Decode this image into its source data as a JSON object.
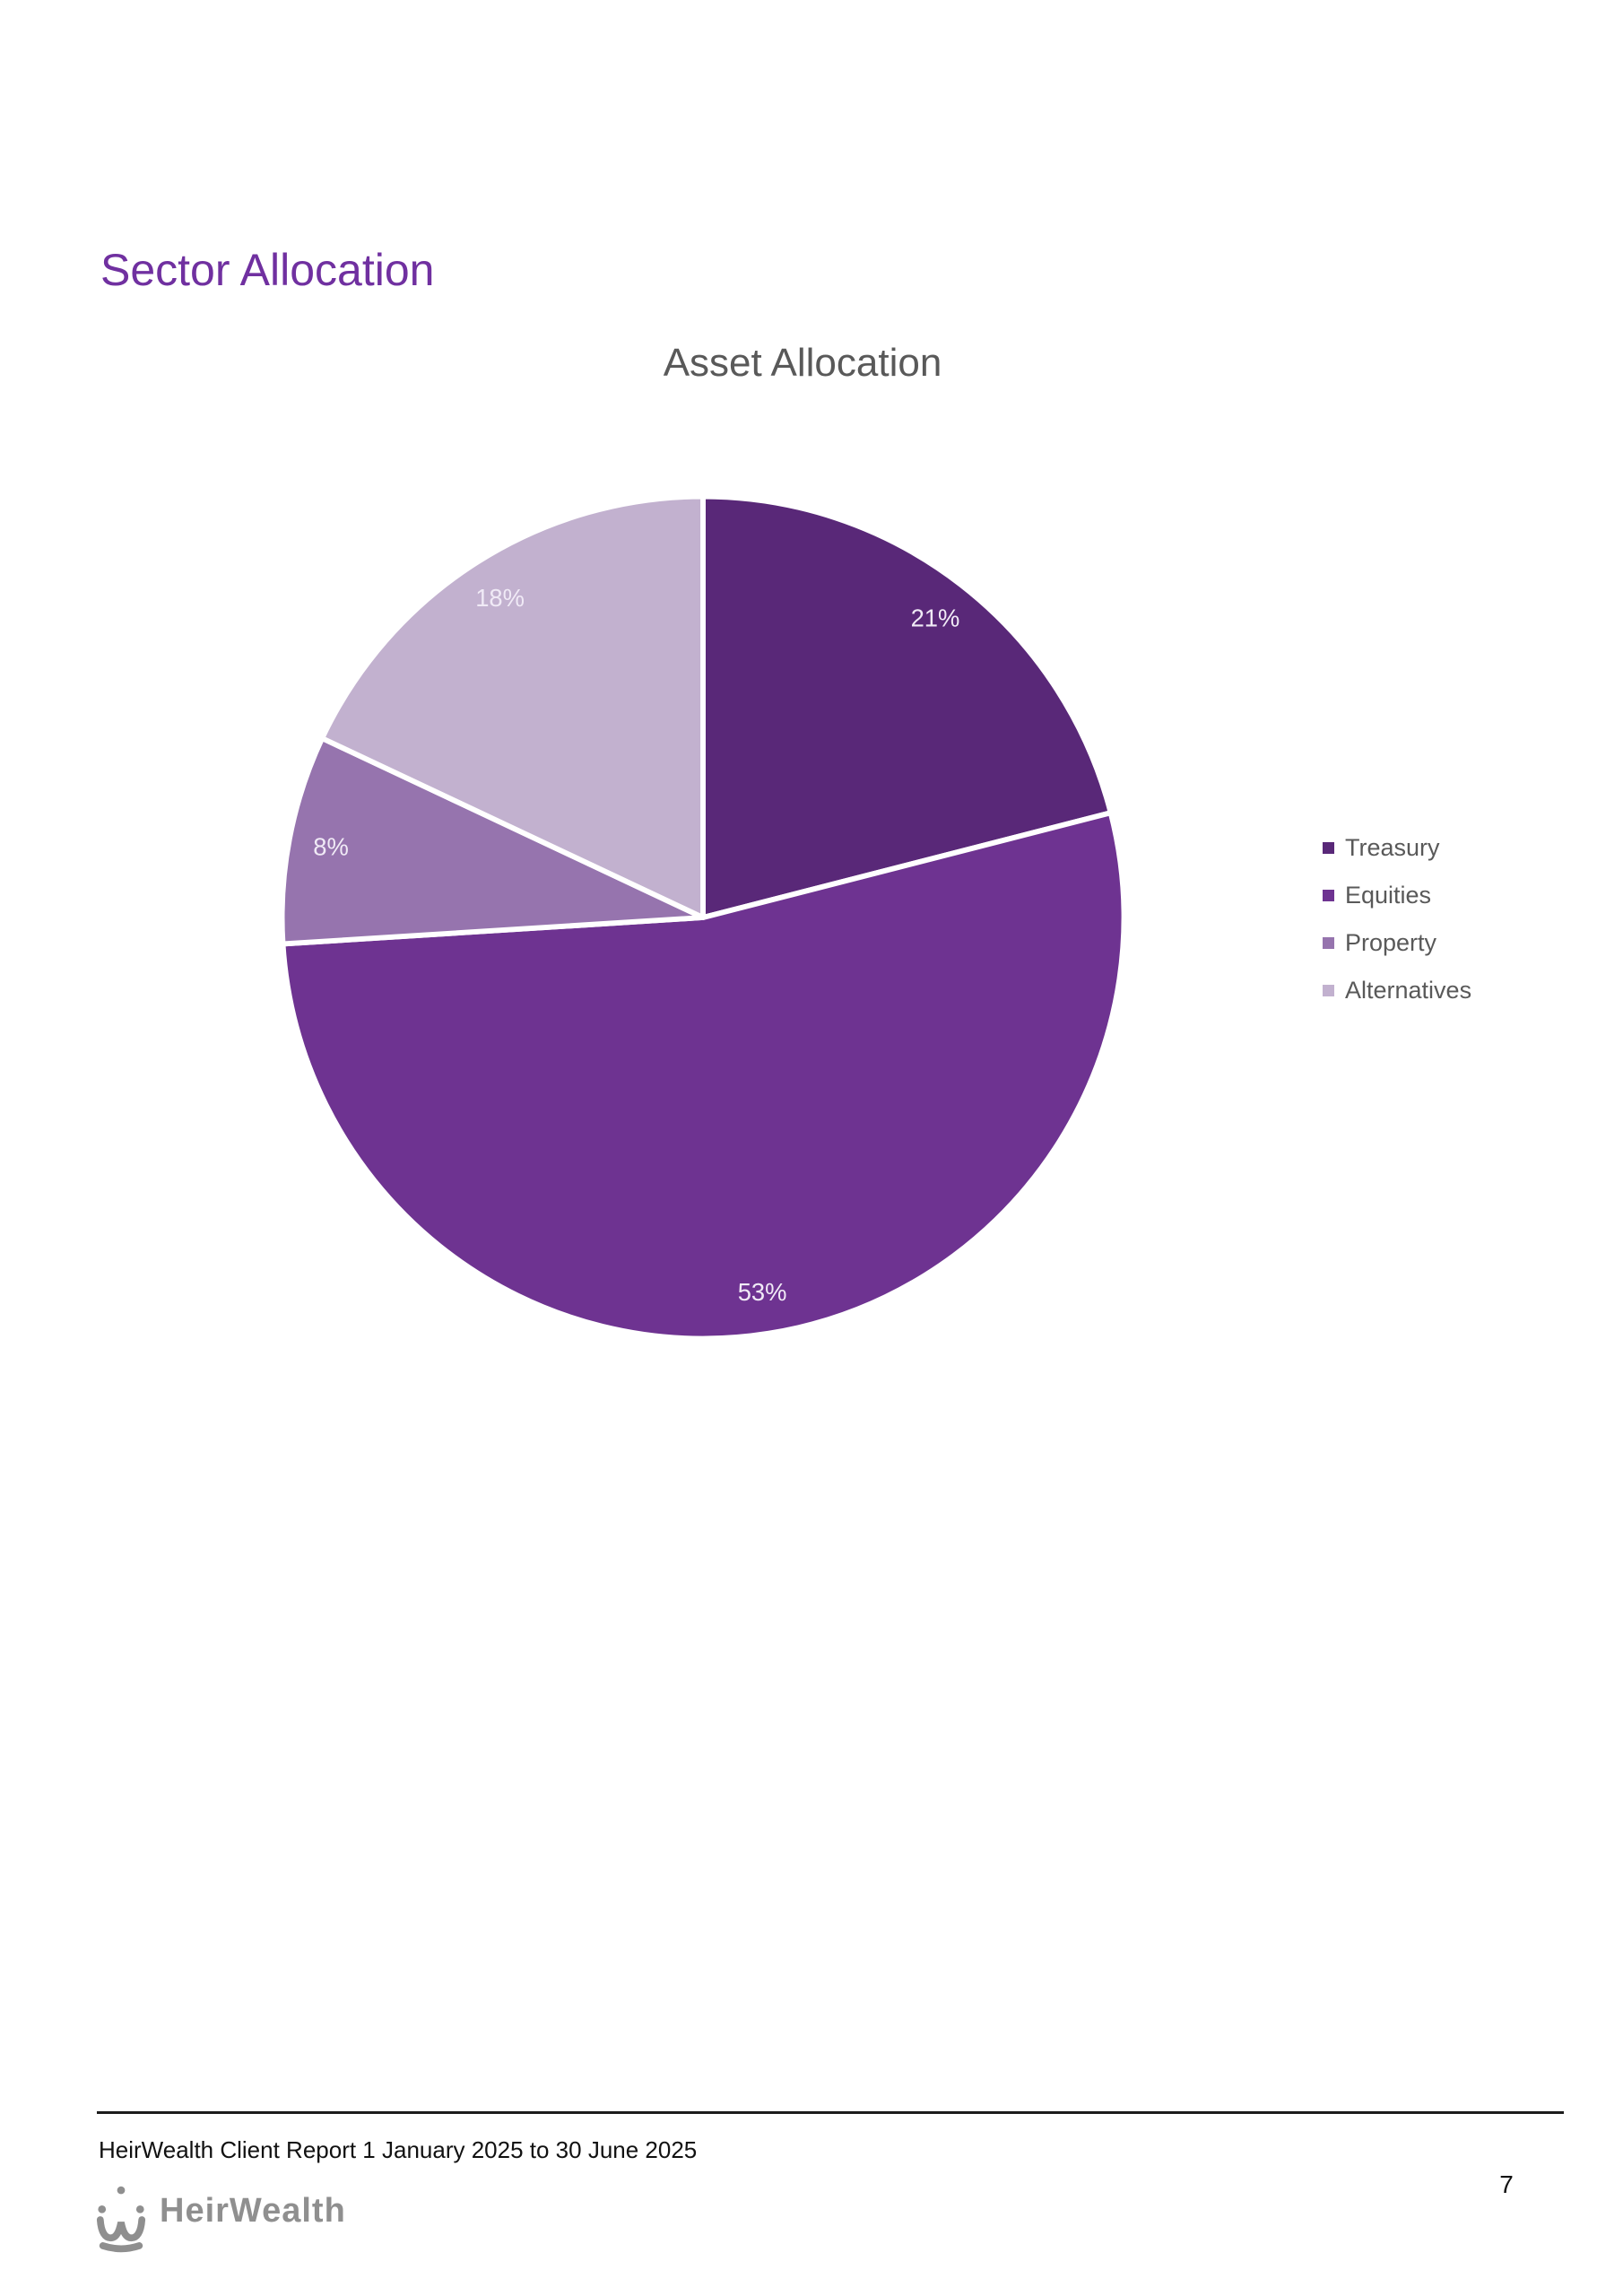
{
  "page": {
    "heading": "Sector Allocation",
    "page_number": "7"
  },
  "chart_data": {
    "type": "pie",
    "title": "Asset Allocation",
    "categories": [
      "Treasury",
      "Equities",
      "Property",
      "Alternatives"
    ],
    "values": [
      21,
      53,
      8,
      18
    ],
    "labels": [
      "21%",
      "53%",
      "8%",
      "18%"
    ],
    "colors": [
      "#592878",
      "#6E3391",
      "#9674AE",
      "#C2B1CF"
    ],
    "slice_border_color": "#FFFFFF",
    "data_label_color": "#F0EAF6",
    "start_angle_deg": 0,
    "direction": "clockwise",
    "legend_position": "right",
    "legend_text_color": "#595959",
    "title_color": "#595959"
  },
  "footer": {
    "report_line": "HeirWealth Client Report 1 January 2025 to 30 June 2025",
    "logo_text": "HeirWealth"
  },
  "theme": {
    "heading_color": "#7030A0",
    "logo_color": "#8F8F8F",
    "rule_color": "#1C1C1C"
  }
}
